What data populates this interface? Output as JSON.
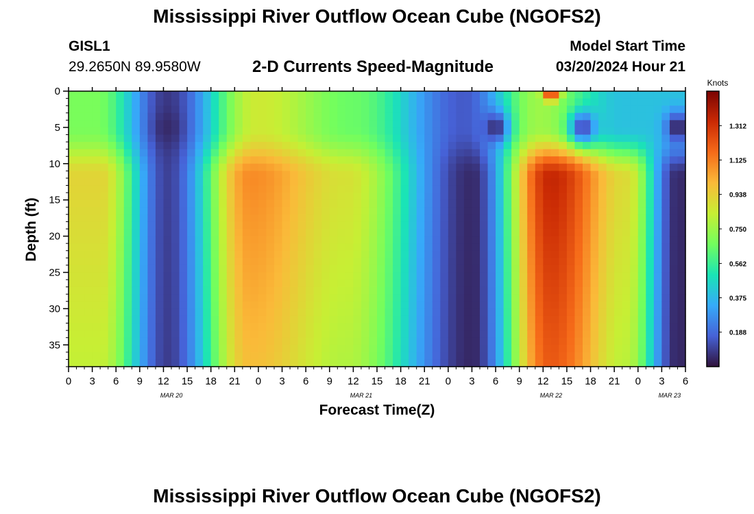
{
  "header": {
    "title": "Mississippi River Outflow Ocean Cube (NGOFS2)",
    "station": "GISL1",
    "coords": "29.2650N  89.9580W",
    "subtitle": "2-D Currents Speed-Magnitude",
    "model_start_label": "Model Start Time",
    "model_start_value": "03/20/2024 Hour 21"
  },
  "footer": {
    "title": "Mississippi River Outflow Ocean Cube (NGOFS2)"
  },
  "chart_data": {
    "type": "heatmap",
    "title": "2-D Currents Speed-Magnitude",
    "xlabel": "Forecast Time(Z)",
    "ylabel": "Depth (ft)",
    "x_range_hours": [
      0,
      78
    ],
    "x_tick_labels": [
      "0",
      "3",
      "6",
      "9",
      "12",
      "15",
      "18",
      "21",
      "0",
      "3",
      "6",
      "9",
      "12",
      "15",
      "18",
      "21",
      "0",
      "3",
      "6",
      "9",
      "12",
      "15",
      "18",
      "21",
      "0",
      "3",
      "6"
    ],
    "date_labels": [
      {
        "hour": 13,
        "label": "MAR 20"
      },
      {
        "hour": 37,
        "label": "MAR 21"
      },
      {
        "hour": 61,
        "label": "MAR 22"
      },
      {
        "hour": 76,
        "label": "MAR 23"
      }
    ],
    "y_range": [
      0,
      38
    ],
    "y_ticks": [
      0,
      5,
      10,
      15,
      20,
      25,
      30,
      35
    ],
    "y_inverted": true,
    "colorbar": {
      "unit": "Knots",
      "min": 0,
      "max": 1.5,
      "ticks": [
        "1.312",
        "1.125",
        "0.938",
        "0.750",
        "0.562",
        "0.375",
        "0.188"
      ],
      "colormap": [
        "#30123b",
        "#4662d7",
        "#36aaf9",
        "#1ae4b6",
        "#72fe5e",
        "#c7ef34",
        "#faba39",
        "#f66b19",
        "#ca2a04",
        "#7a0403"
      ]
    },
    "surface_peaks": [
      {
        "hour": 3.5,
        "value": 0.68
      },
      {
        "hour": 12.5,
        "value": 0.08
      },
      {
        "hour": 24,
        "value": 0.85
      },
      {
        "hour": 36,
        "value": 0.65
      },
      {
        "hour": 50,
        "value": 0.15
      },
      {
        "hour": 59.5,
        "value": 0.75
      },
      {
        "hour": 70,
        "value": 0.4
      }
    ],
    "deep_peaks": [
      {
        "hour": 4,
        "value": 0.92
      },
      {
        "hour": 12.5,
        "value": 0.1
      },
      {
        "hour": 23,
        "value": 1.1
      },
      {
        "hour": 35,
        "value": 0.88
      },
      {
        "hour": 51,
        "value": 0.05
      },
      {
        "hour": 61,
        "value": 1.35
      },
      {
        "hour": 70.5,
        "value": 0.9
      },
      {
        "hour": 77,
        "value": 0.05
      }
    ],
    "surface_extremes": [
      {
        "hour": 24,
        "value": 0.85
      },
      {
        "hour": 61,
        "value": 1.3
      }
    ],
    "mid_depth_minima": [
      {
        "hour": 12.5,
        "value": 0.05
      },
      {
        "hour": 54,
        "value": 0.05
      },
      {
        "hour": 65,
        "value": 0.1
      },
      {
        "hour": 77,
        "value": 0.02
      }
    ]
  }
}
